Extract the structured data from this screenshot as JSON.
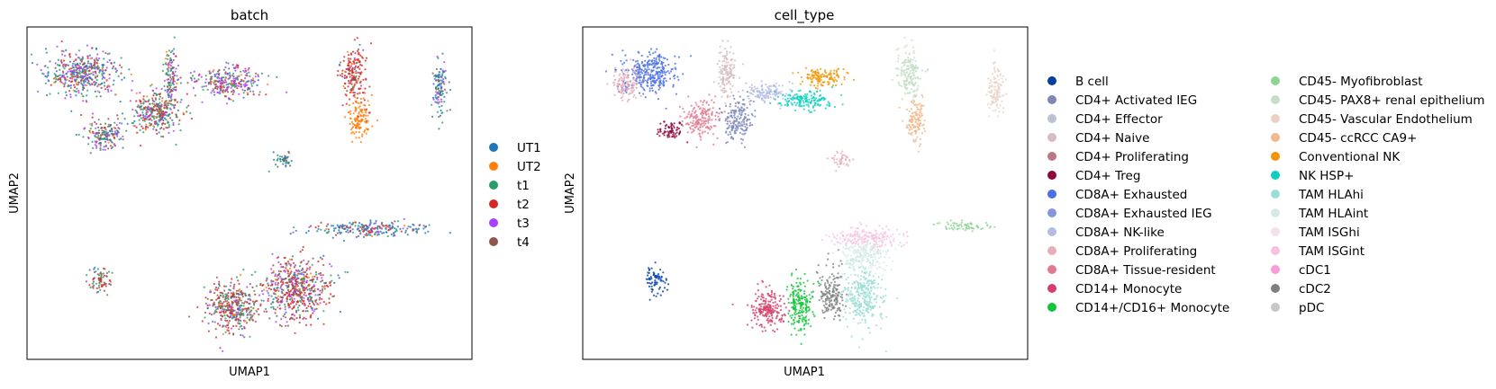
{
  "colors": {
    "UT1": "#1f77b4",
    "UT2": "#ff7f0e",
    "t1": "#279e68",
    "t2": "#d62728",
    "t3": "#aa40fc",
    "t4": "#8c564b",
    "B cell": "#023fa5",
    "CD4+ Activated IEG": "#7d87b9",
    "CD4+ Effector": "#bec1d4",
    "CD4+ Naive": "#d6bcc0",
    "CD4+ Proliferating": "#bb7784",
    "CD4+ Treg": "#8e063b",
    "CD8A+ Exhausted": "#4a6fe3",
    "CD8A+ Exhausted IEG": "#8595e1",
    "CD8A+ NK-like": "#b5bbe3",
    "CD8A+ Proliferating": "#e6afb9",
    "CD8A+ Tissue-resident": "#e07b91",
    "CD14+ Monocyte": "#d33f6a",
    "CD14+/CD16+ Monocyte": "#11c638",
    "CD45- Myofibroblast": "#8dd593",
    "CD45- PAX8+ renal epithelium": "#c6dec7",
    "CD45- Vascular Endothelium": "#ead3c6",
    "CD45- ccRCC CA9+": "#f0b98d",
    "Conventional NK": "#ef9708",
    "NK HSP+": "#0fcfc0",
    "TAM HLAhi": "#9cded6",
    "TAM HLAint": "#d5eae7",
    "TAM ISGhi": "#f3e1eb",
    "TAM ISGint": "#f6c4e1",
    "cDC1": "#f79cd4",
    "cDC2": "#7f7f7f",
    "pDC": "#c7c7c7"
  },
  "chart_data": [
    {
      "type": "scatter",
      "title": "batch",
      "xlabel": "UMAP1",
      "ylabel": "UMAP2",
      "grid": false,
      "ticks": false,
      "legend_position": "right",
      "legend_columns": 1,
      "legend": [
        "UT1",
        "UT2",
        "t1",
        "t2",
        "t3",
        "t4"
      ],
      "clusters": [
        {
          "x": 2.0,
          "y": 8.0,
          "sx": 1.4,
          "sy": 0.9,
          "mix": {
            "UT1": 0.25,
            "UT2": 0.1,
            "t1": 0.2,
            "t2": 0.15,
            "t3": 0.25,
            "t4": 0.05
          }
        },
        {
          "x": 5.2,
          "y": 6.3,
          "sx": 1.0,
          "sy": 0.9,
          "mix": {
            "UT1": 0.1,
            "UT2": 0.05,
            "t1": 0.25,
            "t2": 0.3,
            "t3": 0.15,
            "t4": 0.15
          }
        },
        {
          "x": 5.8,
          "y": 7.8,
          "sx": 0.3,
          "sy": 1.2,
          "mix": {
            "UT1": 0.1,
            "UT2": 0.05,
            "t1": 0.3,
            "t2": 0.1,
            "t3": 0.3,
            "t4": 0.15
          }
        },
        {
          "x": 8.3,
          "y": 7.6,
          "sx": 1.3,
          "sy": 0.6,
          "mix": {
            "UT1": 0.15,
            "UT2": 0.05,
            "t1": 0.2,
            "t2": 0.15,
            "t3": 0.35,
            "t4": 0.1
          }
        },
        {
          "x": 3.0,
          "y": 5.3,
          "sx": 0.8,
          "sy": 0.6,
          "mix": {
            "UT1": 0.15,
            "UT2": 0.05,
            "t1": 0.3,
            "t2": 0.2,
            "t3": 0.15,
            "t4": 0.15
          }
        },
        {
          "x": 13.8,
          "y": 8.0,
          "sx": 0.5,
          "sy": 1.0,
          "mix": {
            "UT1": 0.05,
            "UT2": 0.05,
            "t1": 0.05,
            "t2": 0.75,
            "t3": 0.05,
            "t4": 0.05
          }
        },
        {
          "x": 14.1,
          "y": 5.9,
          "sx": 0.4,
          "sy": 0.9,
          "mix": {
            "UT2": 0.95,
            "t2": 0.05
          }
        },
        {
          "x": 17.6,
          "y": 7.3,
          "sx": 0.3,
          "sy": 1.1,
          "mix": {
            "UT1": 0.35,
            "t1": 0.3,
            "t3": 0.2,
            "t4": 0.15
          }
        },
        {
          "x": 10.8,
          "y": 4.2,
          "sx": 0.4,
          "sy": 0.3,
          "mix": {
            "UT1": 0.4,
            "t1": 0.4,
            "t4": 0.2
          }
        },
        {
          "x": 14.5,
          "y": 1.2,
          "sx": 2.2,
          "sy": 0.3,
          "mix": {
            "UT1": 0.55,
            "UT2": 0.05,
            "t1": 0.1,
            "t2": 0.15,
            "t3": 0.1,
            "t4": 0.05
          }
        },
        {
          "x": 8.5,
          "y": -2.2,
          "sx": 1.1,
          "sy": 1.0,
          "mix": {
            "UT1": 0.05,
            "UT2": 0.05,
            "t1": 0.15,
            "t2": 0.25,
            "t3": 0.1,
            "t4": 0.4
          }
        },
        {
          "x": 11.3,
          "y": -1.4,
          "sx": 1.3,
          "sy": 1.2,
          "mix": {
            "UT1": 0.1,
            "UT2": 0.05,
            "t1": 0.15,
            "t2": 0.4,
            "t3": 0.15,
            "t4": 0.15
          }
        },
        {
          "x": 2.7,
          "y": -1.0,
          "sx": 0.4,
          "sy": 0.5,
          "mix": {
            "UT1": 0.1,
            "t1": 0.25,
            "t2": 0.3,
            "t4": 0.35
          }
        }
      ]
    },
    {
      "type": "scatter",
      "title": "cell_type",
      "xlabel": "UMAP1",
      "ylabel": "UMAP2",
      "grid": false,
      "ticks": false,
      "legend_position": "right",
      "legend_columns": 2,
      "legend": [
        "B cell",
        "CD4+ Activated IEG",
        "CD4+ Effector",
        "CD4+ Naive",
        "CD4+ Proliferating",
        "CD4+ Treg",
        "CD8A+ Exhausted",
        "CD8A+ Exhausted IEG",
        "CD8A+ NK-like",
        "CD8A+ Proliferating",
        "CD8A+ Tissue-resident",
        "CD14+ Monocyte",
        "CD14+/CD16+ Monocyte",
        "CD45- Myofibroblast",
        "CD45- PAX8+ renal epithelium",
        "CD45- Vascular Endothelium",
        "CD45- ccRCC CA9+",
        "Conventional NK",
        "NK HSP+",
        "TAM HLAhi",
        "TAM HLAint",
        "TAM ISGhi",
        "TAM ISGint",
        "cDC1",
        "cDC2",
        "pDC"
      ],
      "clusters": [
        {
          "label": "CD8A+ Exhausted",
          "x": 2.4,
          "y": 8.0,
          "sx": 1.1,
          "sy": 0.8
        },
        {
          "label": "CD8A+ Proliferating",
          "x": 1.4,
          "y": 7.5,
          "sx": 0.6,
          "sy": 0.6
        },
        {
          "label": "CD4+ Naive",
          "x": 5.8,
          "y": 8.0,
          "sx": 0.35,
          "sy": 1.1
        },
        {
          "label": "CD8A+ Tissue-resident",
          "x": 4.7,
          "y": 6.0,
          "sx": 0.7,
          "sy": 0.7
        },
        {
          "label": "CD4+ Activated IEG",
          "x": 6.3,
          "y": 6.0,
          "sx": 0.6,
          "sy": 0.8
        },
        {
          "label": "CD4+ Treg",
          "x": 3.4,
          "y": 5.5,
          "sx": 0.5,
          "sy": 0.4
        },
        {
          "label": "CD8A+ NK-like",
          "x": 7.6,
          "y": 7.1,
          "sx": 0.9,
          "sy": 0.4
        },
        {
          "label": "NK HSP+",
          "x": 9.2,
          "y": 6.8,
          "sx": 1.1,
          "sy": 0.4
        },
        {
          "label": "Conventional NK",
          "x": 10.0,
          "y": 7.8,
          "sx": 0.9,
          "sy": 0.4
        },
        {
          "label": "CD45- PAX8+ renal epithelium",
          "x": 13.8,
          "y": 8.0,
          "sx": 0.5,
          "sy": 1.0
        },
        {
          "label": "CD45- ccRCC CA9+",
          "x": 14.1,
          "y": 5.9,
          "sx": 0.4,
          "sy": 0.9
        },
        {
          "label": "CD45- Vascular Endothelium",
          "x": 17.6,
          "y": 7.3,
          "sx": 0.3,
          "sy": 1.1
        },
        {
          "label": "CD8A+ Proliferating",
          "x": 10.8,
          "y": 4.2,
          "sx": 0.4,
          "sy": 0.3
        },
        {
          "label": "CD45- Myofibroblast",
          "x": 16.2,
          "y": 1.3,
          "sx": 0.9,
          "sy": 0.2
        },
        {
          "label": "TAM ISGint",
          "x": 12.0,
          "y": 0.8,
          "sx": 1.4,
          "sy": 0.4
        },
        {
          "label": "CD14+ Monocyte",
          "x": 7.6,
          "y": -2.3,
          "sx": 0.7,
          "sy": 0.8
        },
        {
          "label": "CD14+/CD16+ Monocyte",
          "x": 9.0,
          "y": -2.2,
          "sx": 0.5,
          "sy": 1.1
        },
        {
          "label": "cDC2",
          "x": 10.4,
          "y": -1.6,
          "sx": 0.5,
          "sy": 1.0
        },
        {
          "label": "TAM HLAhi",
          "x": 11.8,
          "y": -1.8,
          "sx": 0.8,
          "sy": 1.1
        },
        {
          "label": "TAM HLAint",
          "x": 11.8,
          "y": 0.0,
          "sx": 1.0,
          "sy": 0.6
        },
        {
          "label": "B cell",
          "x": 2.7,
          "y": -1.1,
          "sx": 0.4,
          "sy": 0.5
        }
      ]
    }
  ]
}
